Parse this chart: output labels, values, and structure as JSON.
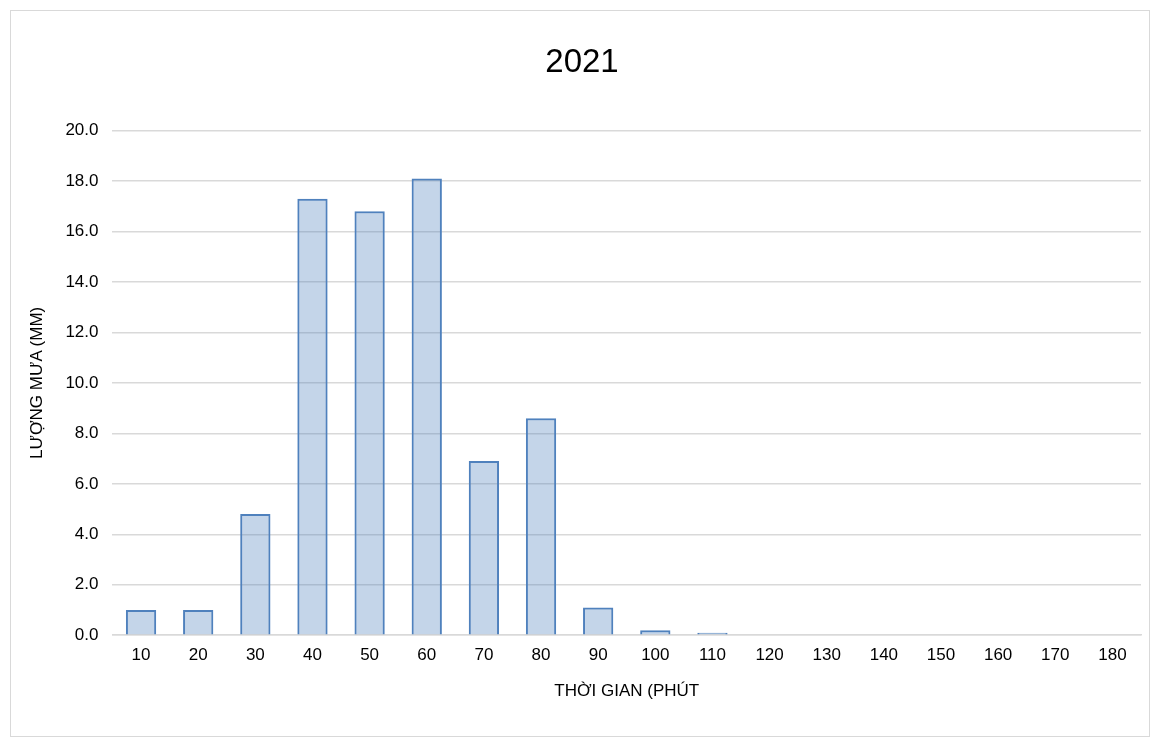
{
  "chart_data": {
    "type": "bar",
    "title": "2021",
    "xlabel": "THỜI GIAN (PHÚT",
    "ylabel": "LƯỢNG MƯA (MM)",
    "categories": [
      "10",
      "20",
      "30",
      "40",
      "50",
      "60",
      "70",
      "80",
      "90",
      "100",
      "110",
      "120",
      "130",
      "140",
      "150",
      "160",
      "170",
      "180"
    ],
    "values": [
      1.0,
      1.0,
      4.8,
      17.3,
      16.8,
      18.1,
      6.9,
      8.6,
      1.1,
      0.2,
      0.1,
      0,
      0,
      0,
      0,
      0,
      0,
      0
    ],
    "color": "#4f81bd",
    "ylim": [
      0,
      20
    ],
    "yticks": [
      {
        "value": 0,
        "label": "0.0"
      },
      {
        "value": 2,
        "label": "2.0"
      },
      {
        "value": 4,
        "label": "4.0"
      },
      {
        "value": 6,
        "label": "6.0"
      },
      {
        "value": 8,
        "label": "8.0"
      },
      {
        "value": 10,
        "label": "10.0"
      },
      {
        "value": 12,
        "label": "12.0"
      },
      {
        "value": 14,
        "label": "14.0"
      },
      {
        "value": 16,
        "label": "16.0"
      },
      {
        "value": 18,
        "label": "18.0"
      },
      {
        "value": 20,
        "label": "20.0"
      }
    ],
    "grid": "y",
    "legend": false
  }
}
